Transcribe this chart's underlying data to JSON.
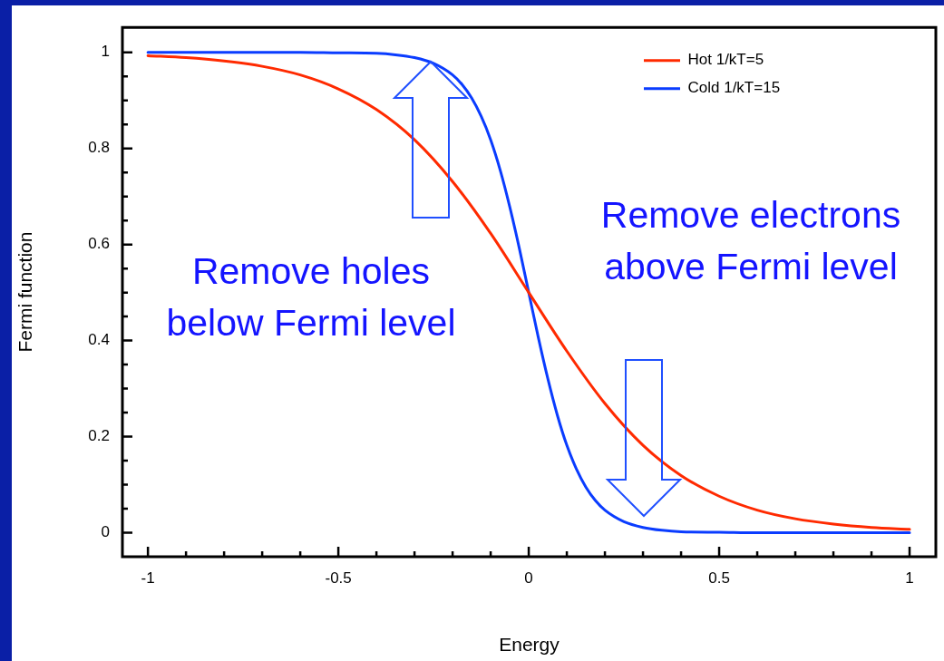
{
  "chart_data": {
    "type": "line",
    "xlabel": "Energy",
    "ylabel": "Fermi function",
    "xlim": [
      -1.067,
      1.069
    ],
    "ylim": [
      -0.05,
      1.052
    ],
    "xticks": [
      -1,
      {
        "value": -0.9,
        "label": null
      },
      {
        "value": -0.8,
        "label": null
      },
      {
        "value": -0.7,
        "label": null
      },
      {
        "value": -0.6,
        "label": null
      },
      -0.5,
      {
        "value": -0.4,
        "label": null
      },
      {
        "value": -0.3,
        "label": null
      },
      {
        "value": -0.2,
        "label": null
      },
      {
        "value": -0.1,
        "label": null
      },
      0,
      {
        "value": 0.1,
        "label": null
      },
      {
        "value": 0.2,
        "label": null
      },
      {
        "value": 0.3,
        "label": null
      },
      {
        "value": 0.4,
        "label": null
      },
      0.5,
      {
        "value": 0.6,
        "label": null
      },
      {
        "value": 0.7,
        "label": null
      },
      {
        "value": 0.8,
        "label": null
      },
      {
        "value": 0.9,
        "label": null
      },
      1
    ],
    "yticks": [
      0,
      {
        "value": 0.05,
        "label": null
      },
      {
        "value": 0.1,
        "label": null
      },
      {
        "value": 0.15,
        "label": null
      },
      0.2,
      {
        "value": 0.25,
        "label": null
      },
      {
        "value": 0.3,
        "label": null
      },
      {
        "value": 0.35,
        "label": null
      },
      0.4,
      {
        "value": 0.45,
        "label": null
      },
      {
        "value": 0.5,
        "label": null
      },
      {
        "value": 0.55,
        "label": null
      },
      0.6,
      {
        "value": 0.65,
        "label": null
      },
      {
        "value": 0.7,
        "label": null
      },
      {
        "value": 0.75,
        "label": null
      },
      0.8,
      {
        "value": 0.85,
        "label": null
      },
      {
        "value": 0.9,
        "label": null
      },
      {
        "value": 0.95,
        "label": null
      },
      1
    ],
    "legend": "top right",
    "grid": false,
    "marker": "none",
    "line_style": "solid",
    "series": [
      {
        "name": "Hot 1/kT=5",
        "color": "#ff2a00",
        "x": [
          -1,
          -0.9,
          -0.8,
          -0.7,
          -0.6,
          -0.5,
          -0.4,
          -0.3,
          -0.2,
          -0.1,
          0,
          0.1,
          0.2,
          0.3,
          0.4,
          0.5,
          0.6,
          0.7,
          0.8,
          0.9,
          1
        ],
        "values": [
          0.993,
          0.989,
          0.982,
          0.971,
          0.953,
          0.924,
          0.881,
          0.818,
          0.731,
          0.623,
          0.5,
          0.378,
          0.269,
          0.182,
          0.119,
          0.076,
          0.047,
          0.029,
          0.018,
          0.011,
          0.007
        ]
      },
      {
        "name": "Cold 1/kT=15",
        "color": "#0a3cff",
        "x": [
          -1,
          -0.8,
          -0.6,
          -0.5,
          -0.4,
          -0.35,
          -0.3,
          -0.25,
          -0.2,
          -0.175,
          -0.15,
          -0.125,
          -0.1,
          -0.075,
          -0.05,
          -0.025,
          0,
          0.025,
          0.05,
          0.075,
          0.1,
          0.125,
          0.15,
          0.175,
          0.2,
          0.25,
          0.3,
          0.35,
          0.4,
          0.5,
          0.6,
          0.8,
          1
        ],
        "values": [
          1,
          1,
          1,
          0.999,
          0.998,
          0.995,
          0.989,
          0.977,
          0.953,
          0.933,
          0.905,
          0.867,
          0.818,
          0.755,
          0.679,
          0.593,
          0.5,
          0.407,
          0.321,
          0.245,
          0.182,
          0.133,
          0.095,
          0.067,
          0.047,
          0.023,
          0.011,
          0.005,
          0.002,
          0.001,
          0,
          0,
          0
        ]
      }
    ],
    "annotations": [
      "Remove holes\nbelow Fermi level",
      "Remove electrons\nabove Fermi level"
    ]
  }
}
